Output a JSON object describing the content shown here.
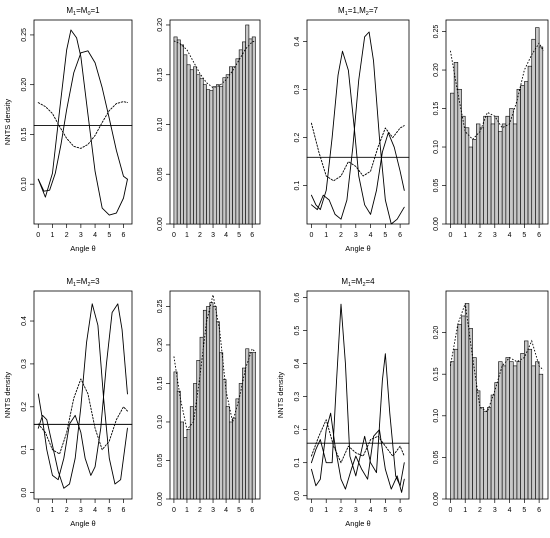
{
  "chart_data": [
    {
      "type": "line",
      "title_main": "M",
      "title_subs": [
        "1",
        "0"
      ],
      "title_seps": [
        "=M",
        "=1"
      ],
      "xlabel": "Angle θ",
      "ylabel": "NNTS density",
      "xlim": [
        -0.3,
        6.6
      ],
      "ylim": [
        0.06,
        0.265
      ],
      "xticks": [
        "0",
        "1",
        "2",
        "3",
        "4",
        "5",
        "6"
      ],
      "yticks": [
        "0.10",
        "0.15",
        "0.20",
        "0.25"
      ],
      "series": [
        {
          "style": "solid",
          "x": [
            0,
            0.5,
            1,
            1.5,
            2,
            2.3,
            2.7,
            3,
            3.5,
            4,
            4.5,
            5,
            5.5,
            6,
            6.28
          ],
          "y": [
            0.105,
            0.087,
            0.111,
            0.174,
            0.235,
            0.255,
            0.247,
            0.228,
            0.17,
            0.113,
            0.076,
            0.069,
            0.071,
            0.086,
            0.105
          ]
        },
        {
          "style": "solid",
          "x": [
            0,
            0.4,
            0.8,
            1.2,
            1.6,
            2,
            2.5,
            3,
            3.5,
            4,
            4.5,
            5,
            5.5,
            6,
            6.28
          ],
          "y": [
            0.105,
            0.093,
            0.094,
            0.111,
            0.14,
            0.175,
            0.212,
            0.232,
            0.234,
            0.222,
            0.197,
            0.166,
            0.134,
            0.108,
            0.105
          ]
        },
        {
          "style": "dotted",
          "x": [
            0,
            0.5,
            1,
            1.5,
            2,
            2.5,
            3,
            3.5,
            4,
            4.5,
            5,
            5.5,
            6,
            6.28
          ],
          "y": [
            0.182,
            0.178,
            0.171,
            0.158,
            0.146,
            0.138,
            0.136,
            0.14,
            0.149,
            0.162,
            0.174,
            0.181,
            0.183,
            0.182
          ]
        },
        {
          "style": "solid",
          "x": [
            -0.3,
            6.6
          ],
          "y": [
            0.159,
            0.159
          ]
        }
      ]
    },
    {
      "type": "bar",
      "xlim": [
        -0.3,
        6.6
      ],
      "ylim": [
        0,
        0.205
      ],
      "xticks": [
        "0",
        "1",
        "2",
        "3",
        "4",
        "5",
        "6"
      ],
      "yticks": [
        "0.00",
        "0.05",
        "0.10",
        "0.15",
        "0.20"
      ],
      "bin_width": 0.25,
      "values": [
        0.188,
        0.185,
        0.18,
        0.17,
        0.16,
        0.155,
        0.158,
        0.15,
        0.146,
        0.14,
        0.135,
        0.134,
        0.138,
        0.14,
        0.138,
        0.147,
        0.15,
        0.158,
        0.158,
        0.166,
        0.175,
        0.183,
        0.2,
        0.186,
        0.188
      ],
      "density_x": [
        0,
        0.5,
        1,
        1.5,
        2,
        2.5,
        3,
        3.5,
        4,
        4.5,
        5,
        5.5,
        6,
        6.28
      ],
      "density_y": [
        0.184,
        0.181,
        0.175,
        0.163,
        0.151,
        0.142,
        0.137,
        0.139,
        0.145,
        0.154,
        0.165,
        0.176,
        0.183,
        0.184
      ]
    },
    {
      "type": "line",
      "title_main": "M",
      "title_subs": [
        "1",
        "2"
      ],
      "title_seps": [
        "=1,M",
        "=7"
      ],
      "xlabel": "Angle θ",
      "ylabel": "",
      "xlim": [
        -0.3,
        6.6
      ],
      "ylim": [
        0.02,
        0.445
      ],
      "xticks": [
        "0",
        "1",
        "2",
        "3",
        "4",
        "5",
        "6"
      ],
      "yticks": [
        "0.1",
        "0.2",
        "0.3",
        "0.4"
      ],
      "series": [
        {
          "style": "solid",
          "x": [
            0,
            0.3,
            0.6,
            1,
            1.4,
            1.8,
            2.1,
            2.5,
            2.9,
            3.2,
            3.6,
            4,
            4.4,
            4.8,
            5.2,
            5.6,
            6,
            6.28
          ],
          "y": [
            0.08,
            0.06,
            0.05,
            0.09,
            0.2,
            0.33,
            0.38,
            0.34,
            0.22,
            0.12,
            0.06,
            0.04,
            0.09,
            0.17,
            0.21,
            0.18,
            0.13,
            0.09
          ]
        },
        {
          "style": "solid",
          "x": [
            0,
            0.4,
            0.8,
            1.2,
            1.6,
            2,
            2.4,
            2.8,
            3.2,
            3.6,
            3.9,
            4.2,
            4.6,
            5,
            5.4,
            5.8,
            6.28
          ],
          "y": [
            0.06,
            0.05,
            0.08,
            0.07,
            0.04,
            0.03,
            0.07,
            0.18,
            0.32,
            0.41,
            0.42,
            0.36,
            0.2,
            0.07,
            0.02,
            0.03,
            0.055
          ]
        },
        {
          "style": "dotted",
          "x": [
            0,
            0.5,
            1,
            1.5,
            2,
            2.5,
            3,
            3.5,
            4,
            4.5,
            5,
            5.5,
            6,
            6.28
          ],
          "y": [
            0.23,
            0.17,
            0.12,
            0.11,
            0.12,
            0.15,
            0.14,
            0.12,
            0.13,
            0.18,
            0.22,
            0.2,
            0.22,
            0.225
          ]
        },
        {
          "style": "solid",
          "x": [
            -0.3,
            6.6
          ],
          "y": [
            0.159,
            0.159
          ]
        }
      ]
    },
    {
      "type": "bar",
      "xlim": [
        -0.3,
        6.6
      ],
      "ylim": [
        0,
        0.265
      ],
      "xticks": [
        "0",
        "1",
        "2",
        "3",
        "4",
        "5",
        "6"
      ],
      "yticks": [
        "0.00",
        "0.05",
        "0.10",
        "0.15",
        "0.20",
        "0.25"
      ],
      "bin_width": 0.25,
      "values": [
        0.17,
        0.21,
        0.175,
        0.14,
        0.125,
        0.1,
        0.11,
        0.13,
        0.125,
        0.14,
        0.14,
        0.13,
        0.14,
        0.12,
        0.13,
        0.14,
        0.15,
        0.13,
        0.175,
        0.18,
        0.185,
        0.205,
        0.24,
        0.255,
        0.23
      ],
      "density_x": [
        0,
        0.5,
        1,
        1.5,
        2,
        2.5,
        3,
        3.5,
        4,
        4.5,
        5,
        5.5,
        6,
        6.28
      ],
      "density_y": [
        0.225,
        0.17,
        0.12,
        0.11,
        0.12,
        0.145,
        0.14,
        0.125,
        0.13,
        0.16,
        0.2,
        0.22,
        0.235,
        0.225
      ]
    },
    {
      "type": "line",
      "title_main": "M",
      "title_subs": [
        "1",
        "2"
      ],
      "title_seps": [
        "=M",
        "=3"
      ],
      "xlabel": "Angle θ",
      "ylabel": "NNTS density",
      "xlim": [
        -0.3,
        6.6
      ],
      "ylim": [
        -0.015,
        0.47
      ],
      "xticks": [
        "0",
        "1",
        "2",
        "3",
        "4",
        "5",
        "6"
      ],
      "yticks": [
        "0.0",
        "0.1",
        "0.2",
        "0.3",
        "0.4"
      ],
      "series": [
        {
          "style": "solid",
          "x": [
            0,
            0.3,
            0.6,
            1,
            1.4,
            1.8,
            2.2,
            2.6,
            3,
            3.3,
            3.7,
            4,
            4.4,
            4.8,
            5.2,
            5.6,
            5.9,
            6.28
          ],
          "y": [
            0.23,
            0.17,
            0.1,
            0.04,
            0.03,
            0.08,
            0.16,
            0.18,
            0.14,
            0.08,
            0.04,
            0.06,
            0.15,
            0.3,
            0.42,
            0.44,
            0.38,
            0.23
          ]
        },
        {
          "style": "solid",
          "x": [
            0,
            0.3,
            0.6,
            1,
            1.4,
            1.8,
            2.2,
            2.6,
            3,
            3.4,
            3.8,
            4.2,
            4.6,
            5,
            5.4,
            5.8,
            6.28
          ],
          "y": [
            0.15,
            0.18,
            0.17,
            0.11,
            0.05,
            0.01,
            0.02,
            0.08,
            0.2,
            0.35,
            0.44,
            0.39,
            0.22,
            0.08,
            0.02,
            0.03,
            0.15
          ]
        },
        {
          "style": "dotted",
          "x": [
            0,
            0.5,
            1,
            1.5,
            2,
            2.5,
            3,
            3.5,
            4,
            4.5,
            5,
            5.5,
            6,
            6.28
          ],
          "y": [
            0.16,
            0.14,
            0.1,
            0.09,
            0.14,
            0.22,
            0.265,
            0.23,
            0.15,
            0.1,
            0.12,
            0.17,
            0.2,
            0.19
          ]
        },
        {
          "style": "solid",
          "x": [
            -0.3,
            6.6
          ],
          "y": [
            0.159,
            0.159
          ]
        }
      ]
    },
    {
      "type": "bar",
      "xlim": [
        -0.3,
        6.6
      ],
      "ylim": [
        0,
        0.27
      ],
      "xticks": [
        "0",
        "1",
        "2",
        "3",
        "4",
        "5",
        "6"
      ],
      "yticks": [
        "0.00",
        "0.05",
        "0.10",
        "0.15",
        "0.20",
        "0.25"
      ],
      "bin_width": 0.25,
      "values": [
        0.165,
        0.14,
        0.1,
        0.08,
        0.09,
        0.12,
        0.15,
        0.18,
        0.21,
        0.245,
        0.25,
        0.255,
        0.25,
        0.23,
        0.19,
        0.155,
        0.12,
        0.1,
        0.105,
        0.13,
        0.15,
        0.17,
        0.195,
        0.19,
        0.19
      ],
      "density_x": [
        0,
        0.5,
        1,
        1.5,
        2,
        2.5,
        3,
        3.5,
        4,
        4.5,
        5,
        5.5,
        6,
        6.28
      ],
      "density_y": [
        0.185,
        0.13,
        0.09,
        0.1,
        0.16,
        0.23,
        0.265,
        0.22,
        0.14,
        0.1,
        0.13,
        0.17,
        0.195,
        0.19
      ]
    },
    {
      "type": "line",
      "title_main": "M",
      "title_subs": [
        "1",
        "2"
      ],
      "title_seps": [
        "=M",
        "=4"
      ],
      "xlabel": "Angle θ",
      "ylabel": "NNTS density",
      "xlim": [
        -0.3,
        6.6
      ],
      "ylim": [
        -0.01,
        0.62
      ],
      "xticks": [
        "0",
        "1",
        "2",
        "3",
        "4",
        "5",
        "6"
      ],
      "yticks": [
        "0.0",
        "0.1",
        "0.2",
        "0.3",
        "0.4",
        "0.5",
        "0.6"
      ],
      "series": [
        {
          "style": "solid",
          "x": [
            0,
            0.3,
            0.6,
            1,
            1.4,
            1.7,
            2,
            2.3,
            2.6,
            3,
            3.3,
            3.6,
            4,
            4.4,
            4.8,
            5,
            5.3,
            5.7,
            6,
            6.28
          ],
          "y": [
            0.1,
            0.14,
            0.17,
            0.1,
            0.1,
            0.35,
            0.58,
            0.4,
            0.12,
            0.06,
            0.12,
            0.18,
            0.1,
            0.07,
            0.35,
            0.43,
            0.25,
            0.06,
            0.03,
            0.1
          ]
        },
        {
          "style": "solid",
          "x": [
            0,
            0.3,
            0.6,
            1,
            1.3,
            1.6,
            2,
            2.3,
            2.7,
            3,
            3.4,
            3.8,
            4.2,
            4.6,
            5,
            5.4,
            5.8,
            6.1,
            6.28
          ],
          "y": [
            0.08,
            0.03,
            0.05,
            0.2,
            0.25,
            0.15,
            0.05,
            0.02,
            0.08,
            0.12,
            0.08,
            0.05,
            0.18,
            0.2,
            0.08,
            0.02,
            0.06,
            0.01,
            0.05
          ]
        },
        {
          "style": "dotted",
          "x": [
            0,
            0.5,
            1,
            1.5,
            2,
            2.5,
            3,
            3.5,
            4,
            4.5,
            5,
            5.5,
            6,
            6.28
          ],
          "y": [
            0.12,
            0.18,
            0.23,
            0.15,
            0.1,
            0.15,
            0.13,
            0.12,
            0.17,
            0.18,
            0.15,
            0.12,
            0.15,
            0.12
          ]
        },
        {
          "style": "solid",
          "x": [
            -0.3,
            6.6
          ],
          "y": [
            0.159,
            0.159
          ]
        }
      ]
    },
    {
      "type": "bar",
      "xlim": [
        -0.3,
        6.6
      ],
      "ylim": [
        0,
        0.25
      ],
      "xticks": [
        "0",
        "1",
        "2",
        "3",
        "4",
        "5",
        "6"
      ],
      "yticks": [
        "0.00",
        "0.05",
        "0.10",
        "0.15",
        "0.20"
      ],
      "bin_width": 0.25,
      "values": [
        0.165,
        0.18,
        0.21,
        0.22,
        0.235,
        0.205,
        0.17,
        0.13,
        0.11,
        0.105,
        0.11,
        0.125,
        0.14,
        0.165,
        0.16,
        0.17,
        0.165,
        0.16,
        0.165,
        0.175,
        0.19,
        0.18,
        0.16,
        0.165,
        0.15
      ],
      "density_x": [
        0,
        0.5,
        1,
        1.5,
        2,
        2.5,
        3,
        3.5,
        4,
        4.5,
        5,
        5.5,
        6,
        6.28
      ],
      "density_y": [
        0.16,
        0.21,
        0.235,
        0.17,
        0.11,
        0.105,
        0.13,
        0.16,
        0.17,
        0.165,
        0.17,
        0.19,
        0.16,
        0.155
      ]
    }
  ]
}
